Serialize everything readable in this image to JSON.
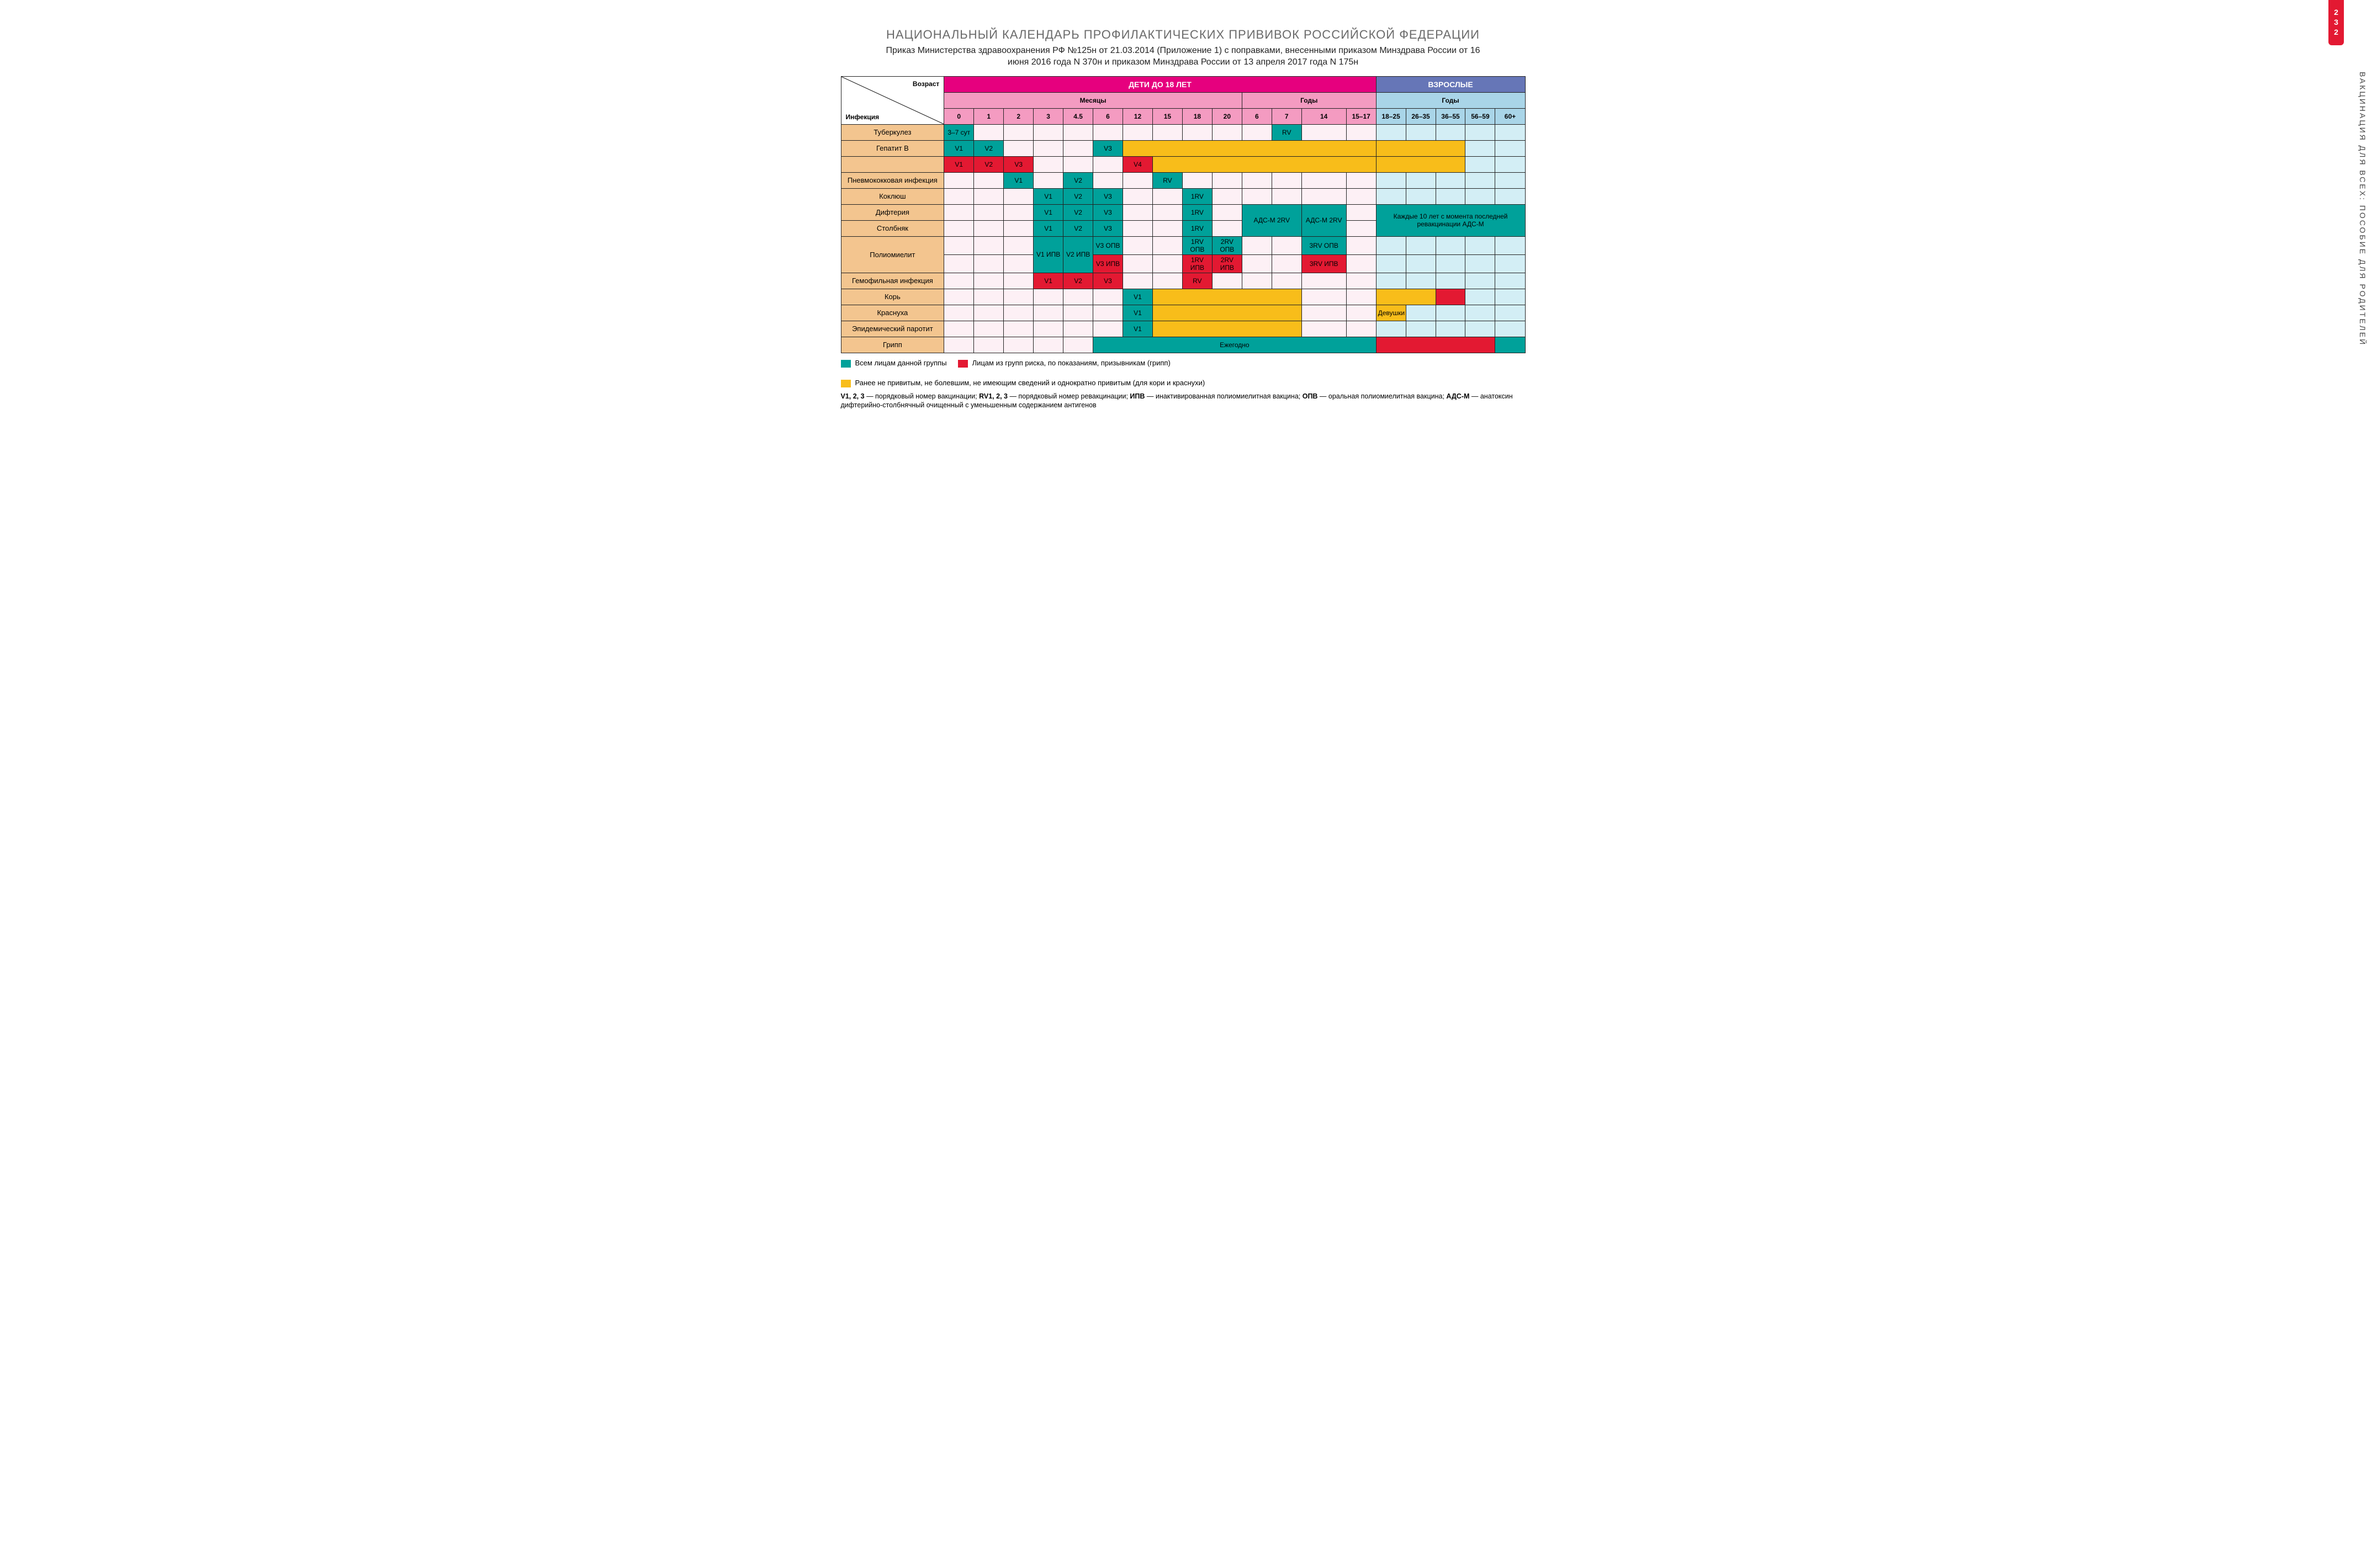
{
  "page_number": "232",
  "side_title": "ВАКЦИНАЦИЯ ДЛЯ ВСЕХ: ПОСОБИЕ ДЛЯ РОДИТЕЛЕЙ",
  "title": "НАЦИОНАЛЬНЫЙ КАЛЕНДАРЬ ПРОФИЛАКТИЧЕСКИХ ПРИВИВОК РОССИЙСКОЙ ФЕДЕРАЦИИ",
  "subtitle": "Приказ Министерства здравоохранения РФ №125н от 21.03.2014 (Приложение 1) с поправками, внесенными приказом Минздрава России от 16 июня 2016 года N 370н и приказом Минздрава России от 13 апреля 2017 года N 175н",
  "colors": {
    "green": "#00a19a",
    "red": "#e31932",
    "yellow": "#f8bd1a",
    "child_bg": "#fdf0f5",
    "adult_bg": "#d3eef5",
    "rowlabel_bg": "#f3c58f",
    "hdr_children": "#e6007e",
    "hdr_adults": "#6676b7",
    "hdr_months": "#f49bc1",
    "hdr_years_adult": "#a9d5e8"
  },
  "header": {
    "diag_infection": "Инфекция",
    "diag_age": "Возраст",
    "children": "ДЕТИ ДО 18 ЛЕТ",
    "adults": "ВЗРОСЛЫЕ",
    "months": "Месяцы",
    "years": "Годы",
    "age_cols": [
      {
        "key": "m0",
        "label": "0",
        "group": "m"
      },
      {
        "key": "m1",
        "label": "1",
        "group": "m"
      },
      {
        "key": "m2",
        "label": "2",
        "group": "m"
      },
      {
        "key": "m3",
        "label": "3",
        "group": "m"
      },
      {
        "key": "m4_5",
        "label": "4.5",
        "group": "m"
      },
      {
        "key": "m6",
        "label": "6",
        "group": "m"
      },
      {
        "key": "m12",
        "label": "12",
        "group": "m"
      },
      {
        "key": "m15",
        "label": "15",
        "group": "m"
      },
      {
        "key": "m18",
        "label": "18",
        "group": "m"
      },
      {
        "key": "m20",
        "label": "20",
        "group": "m"
      },
      {
        "key": "y6",
        "label": "6",
        "group": "yc"
      },
      {
        "key": "y7",
        "label": "7",
        "group": "yc"
      },
      {
        "key": "y14",
        "label": "14",
        "group": "yc",
        "wide": true
      },
      {
        "key": "y15_17",
        "label": "15–17",
        "group": "yc"
      },
      {
        "key": "a18_25",
        "label": "18–25",
        "group": "ya"
      },
      {
        "key": "a26_35",
        "label": "26–35",
        "group": "ya"
      },
      {
        "key": "a36_55",
        "label": "36–55",
        "group": "ya"
      },
      {
        "key": "a56_59",
        "label": "56–59",
        "group": "ya"
      },
      {
        "key": "a60",
        "label": "60+",
        "group": "ya"
      }
    ]
  },
  "rows": [
    {
      "label": "Туберкулез",
      "cells": {
        "m0": {
          "c": "green",
          "t": "3–7 сут"
        },
        "y6": {
          "c": null
        },
        "y7": {
          "c": "green",
          "t": "RV",
          "row_merge_left": "y6"
        }
      }
    },
    {
      "label": "Гепатит B",
      "cells": {
        "m0": {
          "c": "green",
          "t": "V1"
        },
        "m1": {
          "c": "green",
          "t": "V2"
        },
        "m6": {
          "c": "green",
          "t": "V3"
        },
        "m12": {
          "c": "yellow",
          "span": 8,
          "t": ""
        },
        "a18_25": {
          "c": "yellow",
          "span": 3,
          "t": ""
        }
      }
    },
    {
      "label": "",
      "cells": {
        "m0": {
          "c": "red",
          "t": "V1"
        },
        "m1": {
          "c": "red",
          "t": "V2"
        },
        "m2": {
          "c": "red",
          "t": "V3"
        },
        "m12": {
          "c": "red",
          "t": "V4"
        },
        "m15": {
          "c": "yellow",
          "span": 7,
          "t": ""
        },
        "a18_25": {
          "c": "yellow",
          "span": 3,
          "t": ""
        }
      }
    },
    {
      "label": "Пневмококковая инфекция",
      "cells": {
        "m2": {
          "c": "green",
          "t": "V1"
        },
        "m4_5": {
          "c": "green",
          "t": "V2"
        },
        "m15": {
          "c": "green",
          "t": "RV"
        }
      }
    },
    {
      "label": "Коклюш",
      "cells": {
        "m3": {
          "c": "green",
          "t": "V1"
        },
        "m4_5": {
          "c": "green",
          "t": "V2"
        },
        "m6": {
          "c": "green",
          "t": "V3"
        },
        "m18": {
          "c": "green",
          "t": "1RV"
        }
      }
    },
    {
      "label": "Дифтерия",
      "cells": {
        "m3": {
          "c": "green",
          "t": "V1"
        },
        "m4_5": {
          "c": "green",
          "t": "V2"
        },
        "m6": {
          "c": "green",
          "t": "V3"
        },
        "m18": {
          "c": "green",
          "t": "1RV"
        },
        "y6": {
          "c": "green",
          "t": "АДС-М 2RV",
          "span": 2,
          "rowspan": 2
        },
        "y14": {
          "c": "green",
          "t": "АДС-М 2RV",
          "rowspan": 2
        },
        "a18_25": {
          "c": "green",
          "t": "Каждые 10 лет с момента последней ревакцинации АДС-М",
          "span": 5,
          "rowspan": 2
        }
      }
    },
    {
      "label": "Столбняк",
      "skip": [
        "y6",
        "y7",
        "y14",
        "a18_25",
        "a26_35",
        "a36_55",
        "a56_59",
        "a60"
      ],
      "cells": {
        "m3": {
          "c": "green",
          "t": "V1"
        },
        "m4_5": {
          "c": "green",
          "t": "V2"
        },
        "m6": {
          "c": "green",
          "t": "V3"
        },
        "m18": {
          "c": "green",
          "t": "1RV"
        }
      }
    },
    {
      "label": "Полиомиелит",
      "tall": true,
      "cells": {
        "m3": {
          "c": "green",
          "t": "V1 ИПВ",
          "rowspan": 2
        },
        "m4_5": {
          "c": "green",
          "t": "V2 ИПВ",
          "rowspan": 2
        },
        "m6": {
          "c": "green",
          "t": "V3 ОПВ"
        },
        "m18": {
          "c": "green",
          "t": "1RV ОПВ"
        },
        "m20": {
          "c": "green",
          "t": "2RV ОПВ"
        },
        "y14": {
          "c": "green",
          "t": "3RV ОПВ"
        }
      }
    },
    {
      "label": "__polio2",
      "hide_label": true,
      "skip": [
        "m3",
        "m4_5"
      ],
      "cells": {
        "m6": {
          "c": "red",
          "t": "V3 ИПВ"
        },
        "m18": {
          "c": "red",
          "t": "1RV ИПВ"
        },
        "m20": {
          "c": "red",
          "t": "2RV ИПВ"
        },
        "y14": {
          "c": "red",
          "t": "3RV ИПВ"
        }
      }
    },
    {
      "label": "Гемофильная инфекция",
      "cells": {
        "m3": {
          "c": "red",
          "t": "V1"
        },
        "m4_5": {
          "c": "red",
          "t": "V2"
        },
        "m6": {
          "c": "red",
          "t": "V3"
        },
        "m18": {
          "c": "red",
          "t": "RV"
        }
      }
    },
    {
      "label": "Корь",
      "cells": {
        "m12": {
          "c": "green",
          "t": "V1"
        },
        "m15": {
          "c": "yellow",
          "span": 5,
          "t": ""
        },
        "y6": {
          "c": "green",
          "t": "V2"
        },
        "y7": {
          "c": "yellow",
          "span": 3,
          "t": ""
        },
        "a18_25": {
          "c": "yellow",
          "span": 2,
          "t": ""
        },
        "a36_55": {
          "c": "red",
          "t": ""
        }
      }
    },
    {
      "label": "Краснуха",
      "cells": {
        "m12": {
          "c": "green",
          "t": "V1"
        },
        "m15": {
          "c": "yellow",
          "span": 5,
          "t": ""
        },
        "y6": {
          "c": "green",
          "t": "V2"
        },
        "y7": {
          "c": "yellow",
          "span": 3,
          "t": ""
        },
        "a18_25": {
          "c": "yellow",
          "t": "Девушки"
        }
      }
    },
    {
      "label": "Эпидемический паротит",
      "cells": {
        "m12": {
          "c": "green",
          "t": "V1"
        },
        "m15": {
          "c": "yellow",
          "span": 5,
          "t": ""
        },
        "y6": {
          "c": "green",
          "t": "V2"
        },
        "y7": {
          "c": "yellow",
          "span": 3,
          "t": ""
        }
      }
    },
    {
      "label": "Грипп",
      "cells": {
        "m6": {
          "c": "green",
          "span": 9,
          "t": "Ежегодно"
        },
        "a18_25": {
          "c": "red",
          "span": 4,
          "t": ""
        },
        "a60": {
          "c": "green",
          "t": ""
        }
      }
    }
  ],
  "legend": [
    {
      "color": "green",
      "text": "Всем лицам данной группы"
    },
    {
      "color": "red",
      "text": "Лицам из групп риска, по показаниям, призывникам (грипп)"
    },
    {
      "color": "yellow",
      "text": "Ранее не привитым, не болевшим, не имеющим сведений и однократно привитым (для кори и краснухи)"
    }
  ],
  "footnote": "V1, 2, 3 — порядковый номер вакцинации; RV1, 2, 3 — порядковый номер ревакцинации; ИПВ — инактивированная полиомиелитная вакцина; ОПВ — оральная полиомиелитная вакцина; АДС-М — анатоксин дифтерийно-столбнячный очищенный с уменьшенным содержанием антигенов",
  "footnote_bold_terms": [
    "V1, 2, 3",
    "RV1, 2, 3",
    "ИПВ",
    "ОПВ",
    "АДС-М"
  ]
}
